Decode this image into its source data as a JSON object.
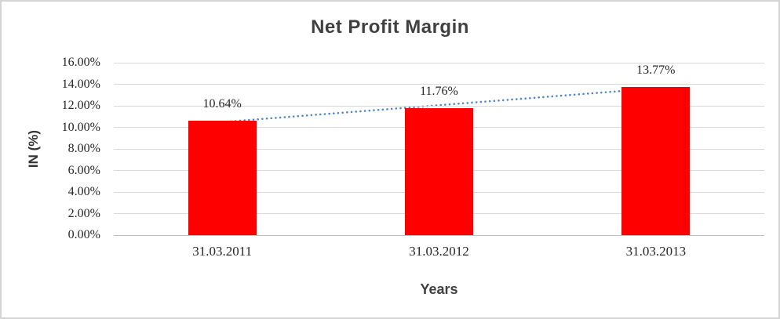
{
  "window": {
    "background": "#FFFFFF",
    "border_color": "#D4D4D4"
  },
  "chart_data": {
    "type": "bar",
    "title": "Net Profit Margin",
    "categories": [
      "31.03.2011",
      "31.03.2012",
      "31.03.2013"
    ],
    "values": [
      10.64,
      11.76,
      13.77
    ],
    "data_labels": [
      "10.64%",
      "11.76%",
      "13.77%"
    ],
    "xlabel": "Years",
    "ylabel": "IN (%)",
    "ylim": [
      0,
      16
    ],
    "ytick_step": 2,
    "yticks": [
      "16.00%",
      "14.00%",
      "12.00%",
      "10.00%",
      "8.00%",
      "6.00%",
      "4.00%",
      "2.00%",
      "0.00%"
    ],
    "grid": true,
    "legend": "none",
    "bar_color": "#FF0000",
    "gridline_color": "#D9D9D9",
    "axis_line_color": "#BFBFBF",
    "title_color": "#404040",
    "label_color": "#262626",
    "trendline": {
      "type": "linear",
      "style": "dotted",
      "color": "#4E87C7"
    }
  }
}
